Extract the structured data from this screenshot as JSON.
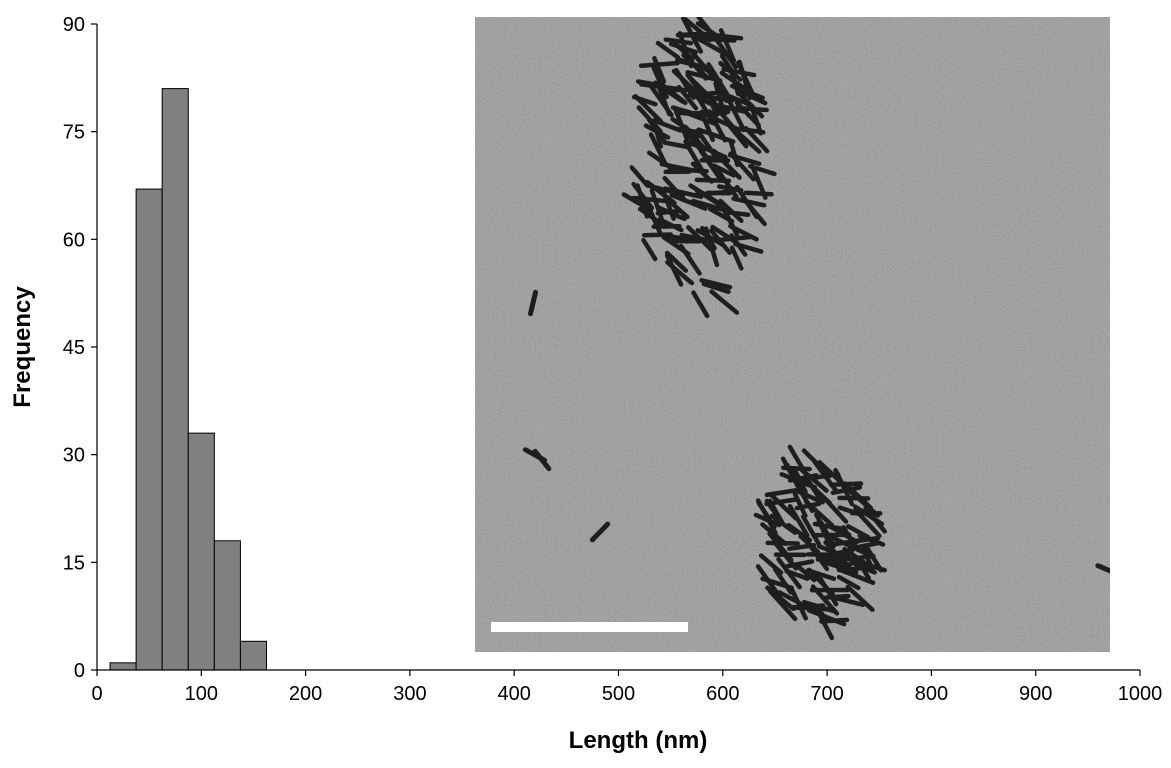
{
  "chart_data": {
    "type": "histogram",
    "x_label": "Length (nm)",
    "y_label": "Frequency",
    "bins": [
      12.5,
      37.5,
      62.5,
      87.5,
      112.5,
      137.5,
      162.5
    ],
    "values": [
      1,
      67,
      81,
      33,
      18,
      4
    ],
    "color": "#808080",
    "xlim": [
      0,
      1000
    ],
    "xticks": [
      0,
      100,
      200,
      300,
      400,
      500,
      600,
      700,
      800,
      900,
      1000
    ],
    "ylim": [
      0,
      90
    ],
    "yticks": [
      0,
      15,
      30,
      45,
      60,
      75,
      90
    ]
  }
}
